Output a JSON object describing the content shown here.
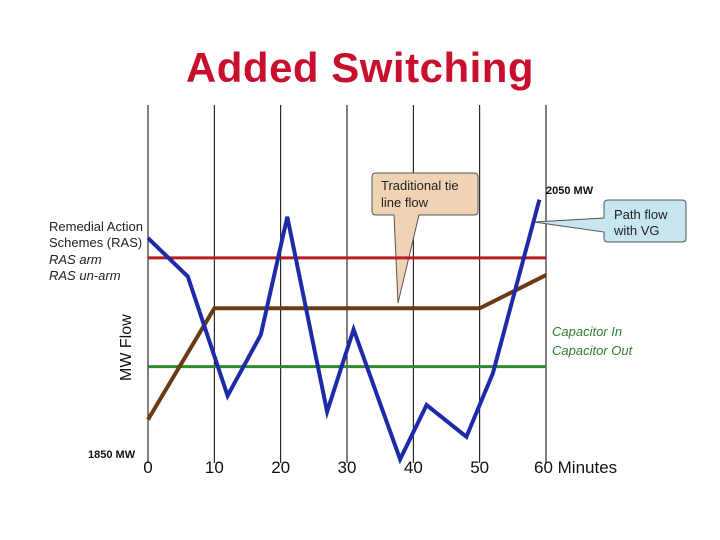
{
  "title": "Added Switching",
  "annotations": {
    "ras_title_line1": "Remedial Action",
    "ras_title_line2": "Schemes (RAS)",
    "ras_arm": "RAS arm",
    "ras_unarm": "RAS un-arm",
    "capacitor_in": "Capacitor In",
    "capacitor_out": "Capacitor Out",
    "top_value": "2050 MW",
    "bottom_value": "1850 MW",
    "callout_traditional_line1": "Traditional tie",
    "callout_traditional_line2": "line flow",
    "callout_path_line1": "Path flow",
    "callout_path_line2": "with VG"
  },
  "colors": {
    "title": "#c8102e",
    "ras_line": "#b81c22",
    "capacitor_line": "#2e8b2e",
    "path_flow": "#1f2aa8",
    "tie_line_flow": "#6b3a12",
    "traditional_callout_fill": "#f0d3b4",
    "path_callout_fill": "#c8e6ef"
  },
  "chart_data": {
    "type": "line",
    "title": "Added Switching",
    "xlabel": "Minutes",
    "ylabel": "MW Flow",
    "x_ticks": [
      "0",
      "10",
      "20",
      "30",
      "40",
      "50",
      "60 Minutes"
    ],
    "xlim": [
      0,
      60
    ],
    "ylim": [
      1850,
      2050
    ],
    "grid": "vertical",
    "series": [
      {
        "key": "path_flow",
        "x": [
          0,
          6,
          12,
          17,
          21,
          27,
          31,
          38,
          42,
          48,
          52,
          59
        ],
        "y": [
          2016,
          1987,
          1897,
          1943,
          2032,
          1885,
          1947,
          1849,
          1890,
          1866,
          1914,
          2045
        ]
      },
      {
        "key": "tie_line_flow",
        "x": [
          0,
          10,
          50,
          60
        ],
        "y": [
          1879,
          1963,
          1963,
          1988
        ]
      }
    ],
    "reference_lines": [
      {
        "key": "ras",
        "y": 2001
      },
      {
        "key": "capacitor",
        "y": 1919
      }
    ]
  }
}
